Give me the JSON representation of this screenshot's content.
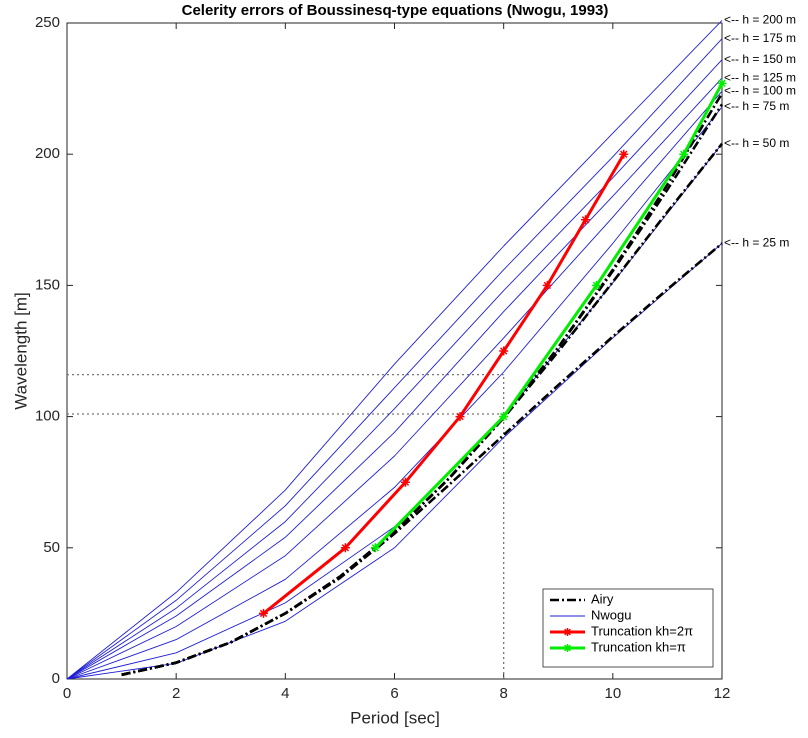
{
  "chart_data": {
    "type": "line",
    "title": "Celerity errors of Boussinesq-type equations (Nwogu, 1993)",
    "x_label": "Period [sec]",
    "y_label": "Wavelength [m]",
    "xlim": [
      0,
      12
    ],
    "xticks": [
      0,
      2,
      4,
      6,
      8,
      10,
      12
    ],
    "ylim": [
      0,
      250
    ],
    "yticks": [
      0,
      50,
      100,
      150,
      200,
      250
    ],
    "legend": "lower right",
    "reference_lines": {
      "y": [
        116,
        101
      ],
      "x": [
        8
      ]
    },
    "series": [
      {
        "name": "Airy",
        "color": "#000000",
        "style": "dashdot",
        "lines": [
          {
            "x": [
              1,
              2,
              3,
              4,
              5,
              6,
              7,
              8,
              9,
              10,
              11,
              12
            ],
            "values": [
              1.6,
              6.2,
              14,
              25,
              38.5,
              55.4,
              74,
              93,
              112,
              130.5,
              148.5,
              166
            ]
          },
          {
            "x": [
              1,
              2,
              3,
              4,
              5,
              6,
              7,
              8,
              9,
              10,
              11,
              12
            ],
            "values": [
              1.6,
              6.2,
              14,
              25,
              39,
              56.2,
              76.4,
              99.5,
              124.8,
              151.3,
              178,
              204
            ]
          },
          {
            "x": [
              1,
              2,
              3,
              4,
              5,
              6,
              7,
              8,
              9,
              10,
              11,
              12
            ],
            "values": [
              1.6,
              6.2,
              14,
              25,
              39,
              56.2,
              76.5,
              99.9,
              126.3,
              155.5,
              186.5,
              219
            ]
          },
          {
            "x": [
              1,
              2,
              3,
              4,
              5,
              6,
              7,
              8,
              9,
              10,
              11,
              12
            ],
            "values": [
              1.6,
              6.2,
              14,
              25,
              39,
              56.2,
              76.5,
              99.9,
              126.4,
              156,
              188.4,
              223.2
            ]
          }
        ]
      },
      {
        "name": "Nwogu",
        "color": "#1f1fd6",
        "style": "solid",
        "lines": [
          {
            "label": "<-- h = 200 m",
            "x": [
              0,
              2,
              4,
              6,
              8,
              10,
              12
            ],
            "values": [
              0,
              33,
              72,
              120,
              165,
              208,
              251
            ]
          },
          {
            "label": "<-- h = 175 m",
            "x": [
              0,
              2,
              4,
              6,
              8,
              10,
              12
            ],
            "values": [
              0,
              30,
              66,
              111,
              156,
              199,
              244
            ]
          },
          {
            "label": "<-- h = 150 m",
            "x": [
              0,
              2,
              4,
              6,
              8,
              10,
              12
            ],
            "values": [
              0,
              27,
              60,
              103,
              148,
              191,
              236
            ]
          },
          {
            "label": "<-- h = 125 m",
            "x": [
              0,
              2,
              4,
              6,
              8,
              10,
              12
            ],
            "values": [
              0,
              24,
              54,
              94,
              140,
              184,
              229
            ]
          },
          {
            "label": "<-- h = 100 m",
            "x": [
              0,
              2,
              4,
              6,
              8,
              10,
              12
            ],
            "values": [
              0,
              20,
              47,
              85,
              130,
              176,
              224
            ]
          },
          {
            "label": "<-- h = 75 m",
            "x": [
              0,
              2,
              4,
              6,
              8,
              10,
              12
            ],
            "values": [
              0,
              15,
              38,
              73,
              117,
              166,
              218
            ]
          },
          {
            "label": "<-- h = 50 m",
            "x": [
              0,
              2,
              4,
              6,
              8,
              10,
              12
            ],
            "values": [
              0,
              10,
              29,
              58,
              100,
              151,
              204
            ]
          },
          {
            "label": "<-- h = 25 m",
            "x": [
              0,
              2,
              4,
              6,
              8,
              10,
              12
            ],
            "values": [
              0,
              6,
              22,
              50,
              92,
              130,
              166
            ]
          }
        ]
      },
      {
        "name": "Truncation kh=2π",
        "color": "#ff0000",
        "style": "solid",
        "marker": "star",
        "x": [
          3.6,
          5.1,
          6.2,
          7.2,
          8,
          8.8,
          9.5,
          10.2
        ],
        "values": [
          25,
          50,
          75,
          100,
          125,
          150,
          175,
          200
        ]
      },
      {
        "name": "Truncation kh=π",
        "color": "#00ee00",
        "style": "solid",
        "marker": "star",
        "x": [
          5.65,
          8,
          9.7,
          11.3,
          12
        ],
        "values": [
          50,
          100,
          150,
          200,
          227
        ]
      }
    ]
  }
}
